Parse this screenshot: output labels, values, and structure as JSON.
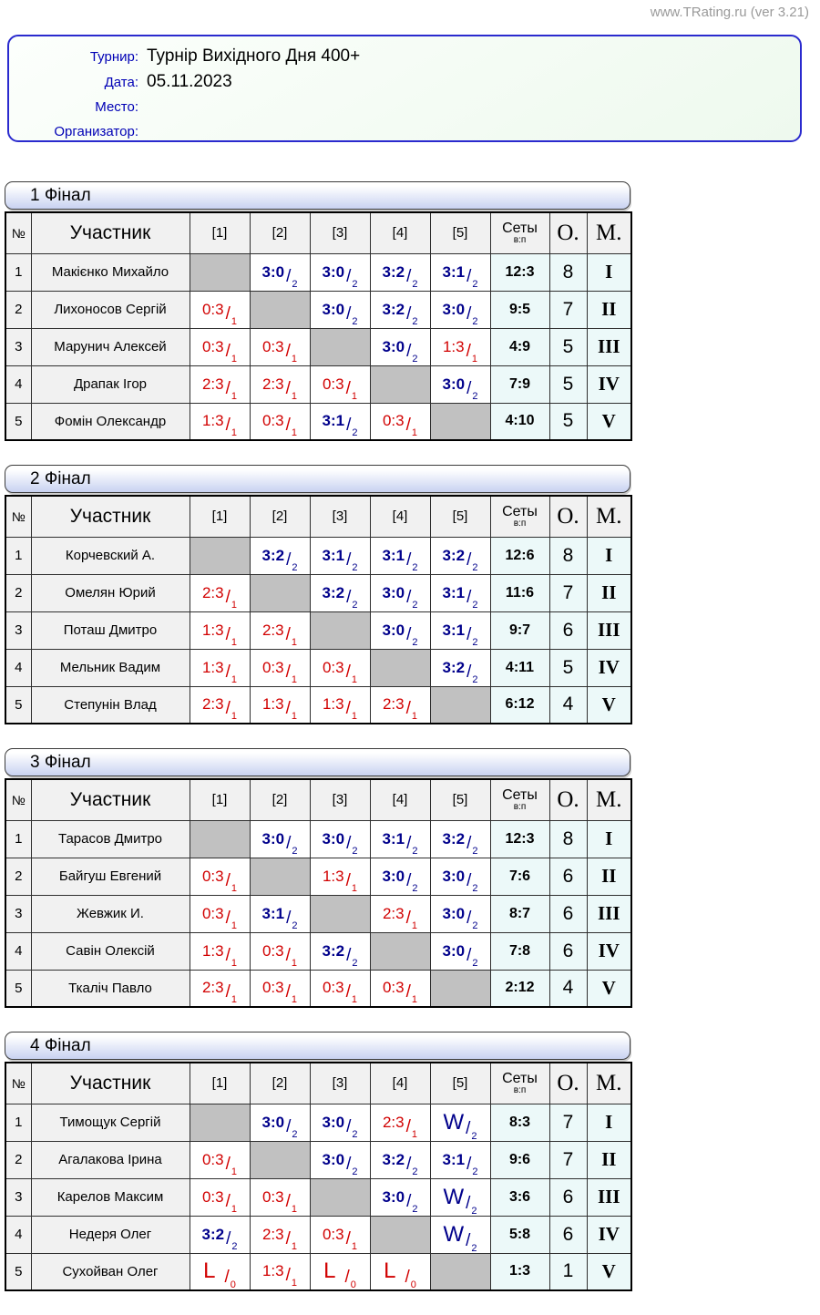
{
  "site": {
    "watermark": "www.TRating.ru (ver 3.21)"
  },
  "info": {
    "rows": [
      {
        "label": "Турнир:",
        "value": "Турнір Вихідного Дня 400+"
      },
      {
        "label": "Дата:",
        "value": "05.11.2023"
      },
      {
        "label": "Место:",
        "value": ""
      },
      {
        "label": "Организатор:",
        "value": ""
      }
    ]
  },
  "colors": {
    "win_score": "#00008b",
    "loss_score": "#d10000",
    "diagonal_cell": "#c1c1c1",
    "summary_bg": "#ecf9f9",
    "header_bg": "#f1f1f1",
    "info_border": "#2a2ace",
    "bar_gradient_bottom": "#c8d2f1"
  },
  "table_header": {
    "num": "№",
    "participant": "Участник",
    "opponents": [
      "[1]",
      "[2]",
      "[3]",
      "[4]",
      "[5]"
    ],
    "sets": "Сеты",
    "sets_sub": "в:п",
    "points": "О.",
    "place": "М."
  },
  "groups": [
    {
      "title": "1 Фінал",
      "rows": [
        {
          "num": "1",
          "name": "Макієнко Михайло",
          "cells": [
            null,
            {
              "s": "3:0",
              "p": "2",
              "r": "win"
            },
            {
              "s": "3:0",
              "p": "2",
              "r": "win"
            },
            {
              "s": "3:2",
              "p": "2",
              "r": "win"
            },
            {
              "s": "3:1",
              "p": "2",
              "r": "win"
            }
          ],
          "sets": "12:3",
          "points": "8",
          "place": "I"
        },
        {
          "num": "2",
          "name": "Лихоносов Сергій",
          "cells": [
            {
              "s": "0:3",
              "p": "1",
              "r": "loss"
            },
            null,
            {
              "s": "3:0",
              "p": "2",
              "r": "win"
            },
            {
              "s": "3:2",
              "p": "2",
              "r": "win"
            },
            {
              "s": "3:0",
              "p": "2",
              "r": "win"
            }
          ],
          "sets": "9:5",
          "points": "7",
          "place": "II"
        },
        {
          "num": "3",
          "name": "Марунич Алексей",
          "cells": [
            {
              "s": "0:3",
              "p": "1",
              "r": "loss"
            },
            {
              "s": "0:3",
              "p": "1",
              "r": "loss"
            },
            null,
            {
              "s": "3:0",
              "p": "2",
              "r": "win"
            },
            {
              "s": "1:3",
              "p": "1",
              "r": "loss"
            }
          ],
          "sets": "4:9",
          "points": "5",
          "place": "III"
        },
        {
          "num": "4",
          "name": "Драпак Ігор",
          "cells": [
            {
              "s": "2:3",
              "p": "1",
              "r": "loss"
            },
            {
              "s": "2:3",
              "p": "1",
              "r": "loss"
            },
            {
              "s": "0:3",
              "p": "1",
              "r": "loss"
            },
            null,
            {
              "s": "3:0",
              "p": "2",
              "r": "win"
            }
          ],
          "sets": "7:9",
          "points": "5",
          "place": "IV"
        },
        {
          "num": "5",
          "name": "Фомін Олександр",
          "cells": [
            {
              "s": "1:3",
              "p": "1",
              "r": "loss"
            },
            {
              "s": "0:3",
              "p": "1",
              "r": "loss"
            },
            {
              "s": "3:1",
              "p": "2",
              "r": "win"
            },
            {
              "s": "0:3",
              "p": "1",
              "r": "loss"
            },
            null
          ],
          "sets": "4:10",
          "points": "5",
          "place": "V"
        }
      ]
    },
    {
      "title": "2 Фінал",
      "rows": [
        {
          "num": "1",
          "name": "Корчевский А.",
          "cells": [
            null,
            {
              "s": "3:2",
              "p": "2",
              "r": "win"
            },
            {
              "s": "3:1",
              "p": "2",
              "r": "win"
            },
            {
              "s": "3:1",
              "p": "2",
              "r": "win"
            },
            {
              "s": "3:2",
              "p": "2",
              "r": "win"
            }
          ],
          "sets": "12:6",
          "points": "8",
          "place": "I"
        },
        {
          "num": "2",
          "name": "Омелян Юрий",
          "cells": [
            {
              "s": "2:3",
              "p": "1",
              "r": "loss"
            },
            null,
            {
              "s": "3:2",
              "p": "2",
              "r": "win"
            },
            {
              "s": "3:0",
              "p": "2",
              "r": "win"
            },
            {
              "s": "3:1",
              "p": "2",
              "r": "win"
            }
          ],
          "sets": "11:6",
          "points": "7",
          "place": "II"
        },
        {
          "num": "3",
          "name": "Поташ Дмитро",
          "cells": [
            {
              "s": "1:3",
              "p": "1",
              "r": "loss"
            },
            {
              "s": "2:3",
              "p": "1",
              "r": "loss"
            },
            null,
            {
              "s": "3:0",
              "p": "2",
              "r": "win"
            },
            {
              "s": "3:1",
              "p": "2",
              "r": "win"
            }
          ],
          "sets": "9:7",
          "points": "6",
          "place": "III"
        },
        {
          "num": "4",
          "name": "Мельник Вадим",
          "cells": [
            {
              "s": "1:3",
              "p": "1",
              "r": "loss"
            },
            {
              "s": "0:3",
              "p": "1",
              "r": "loss"
            },
            {
              "s": "0:3",
              "p": "1",
              "r": "loss"
            },
            null,
            {
              "s": "3:2",
              "p": "2",
              "r": "win"
            }
          ],
          "sets": "4:11",
          "points": "5",
          "place": "IV"
        },
        {
          "num": "5",
          "name": "Степунін Влад",
          "cells": [
            {
              "s": "2:3",
              "p": "1",
              "r": "loss"
            },
            {
              "s": "1:3",
              "p": "1",
              "r": "loss"
            },
            {
              "s": "1:3",
              "p": "1",
              "r": "loss"
            },
            {
              "s": "2:3",
              "p": "1",
              "r": "loss"
            },
            null
          ],
          "sets": "6:12",
          "points": "4",
          "place": "V"
        }
      ]
    },
    {
      "title": "3 Фінал",
      "rows": [
        {
          "num": "1",
          "name": "Тарасов Дмитро",
          "cells": [
            null,
            {
              "s": "3:0",
              "p": "2",
              "r": "win"
            },
            {
              "s": "3:0",
              "p": "2",
              "r": "win"
            },
            {
              "s": "3:1",
              "p": "2",
              "r": "win"
            },
            {
              "s": "3:2",
              "p": "2",
              "r": "win"
            }
          ],
          "sets": "12:3",
          "points": "8",
          "place": "I"
        },
        {
          "num": "2",
          "name": "Байгуш Евгений",
          "cells": [
            {
              "s": "0:3",
              "p": "1",
              "r": "loss"
            },
            null,
            {
              "s": "1:3",
              "p": "1",
              "r": "loss"
            },
            {
              "s": "3:0",
              "p": "2",
              "r": "win"
            },
            {
              "s": "3:0",
              "p": "2",
              "r": "win"
            }
          ],
          "sets": "7:6",
          "points": "6",
          "place": "II"
        },
        {
          "num": "3",
          "name": "Жевжик И.",
          "cells": [
            {
              "s": "0:3",
              "p": "1",
              "r": "loss"
            },
            {
              "s": "3:1",
              "p": "2",
              "r": "win"
            },
            null,
            {
              "s": "2:3",
              "p": "1",
              "r": "loss"
            },
            {
              "s": "3:0",
              "p": "2",
              "r": "win"
            }
          ],
          "sets": "8:7",
          "points": "6",
          "place": "III"
        },
        {
          "num": "4",
          "name": "Савін Олексій",
          "cells": [
            {
              "s": "1:3",
              "p": "1",
              "r": "loss"
            },
            {
              "s": "0:3",
              "p": "1",
              "r": "loss"
            },
            {
              "s": "3:2",
              "p": "2",
              "r": "win"
            },
            null,
            {
              "s": "3:0",
              "p": "2",
              "r": "win"
            }
          ],
          "sets": "7:8",
          "points": "6",
          "place": "IV"
        },
        {
          "num": "5",
          "name": "Ткаліч Павло",
          "cells": [
            {
              "s": "2:3",
              "p": "1",
              "r": "loss"
            },
            {
              "s": "0:3",
              "p": "1",
              "r": "loss"
            },
            {
              "s": "0:3",
              "p": "1",
              "r": "loss"
            },
            {
              "s": "0:3",
              "p": "1",
              "r": "loss"
            },
            null
          ],
          "sets": "2:12",
          "points": "4",
          "place": "V"
        }
      ]
    },
    {
      "title": "4 Фінал",
      "rows": [
        {
          "num": "1",
          "name": "Тимощук Сергій",
          "cells": [
            null,
            {
              "s": "3:0",
              "p": "2",
              "r": "win"
            },
            {
              "s": "3:0",
              "p": "2",
              "r": "win"
            },
            {
              "s": "2:3",
              "p": "1",
              "r": "loss"
            },
            {
              "s": "W",
              "p": "2",
              "r": "win",
              "wo": true
            }
          ],
          "sets": "8:3",
          "points": "7",
          "place": "I"
        },
        {
          "num": "2",
          "name": "Агалакова Ірина",
          "cells": [
            {
              "s": "0:3",
              "p": "1",
              "r": "loss"
            },
            null,
            {
              "s": "3:0",
              "p": "2",
              "r": "win"
            },
            {
              "s": "3:2",
              "p": "2",
              "r": "win"
            },
            {
              "s": "3:1",
              "p": "2",
              "r": "win"
            }
          ],
          "sets": "9:6",
          "points": "7",
          "place": "II"
        },
        {
          "num": "3",
          "name": "Карелов Максим",
          "cells": [
            {
              "s": "0:3",
              "p": "1",
              "r": "loss"
            },
            {
              "s": "0:3",
              "p": "1",
              "r": "loss"
            },
            null,
            {
              "s": "3:0",
              "p": "2",
              "r": "win"
            },
            {
              "s": "W",
              "p": "2",
              "r": "win",
              "wo": true
            }
          ],
          "sets": "3:6",
          "points": "6",
          "place": "III"
        },
        {
          "num": "4",
          "name": "Недеря Олег",
          "cells": [
            {
              "s": "3:2",
              "p": "2",
              "r": "win"
            },
            {
              "s": "2:3",
              "p": "1",
              "r": "loss"
            },
            {
              "s": "0:3",
              "p": "1",
              "r": "loss"
            },
            null,
            {
              "s": "W",
              "p": "2",
              "r": "win",
              "wo": true
            }
          ],
          "sets": "5:8",
          "points": "6",
          "place": "IV"
        },
        {
          "num": "5",
          "name": "Сухойван Олег",
          "cells": [
            {
              "s": "L",
              "p": "0",
              "r": "loss",
              "wo": true
            },
            {
              "s": "1:3",
              "p": "1",
              "r": "loss"
            },
            {
              "s": "L",
              "p": "0",
              "r": "loss",
              "wo": true
            },
            {
              "s": "L",
              "p": "0",
              "r": "loss",
              "wo": true
            },
            null
          ],
          "sets": "1:3",
          "points": "1",
          "place": "V"
        }
      ]
    }
  ]
}
